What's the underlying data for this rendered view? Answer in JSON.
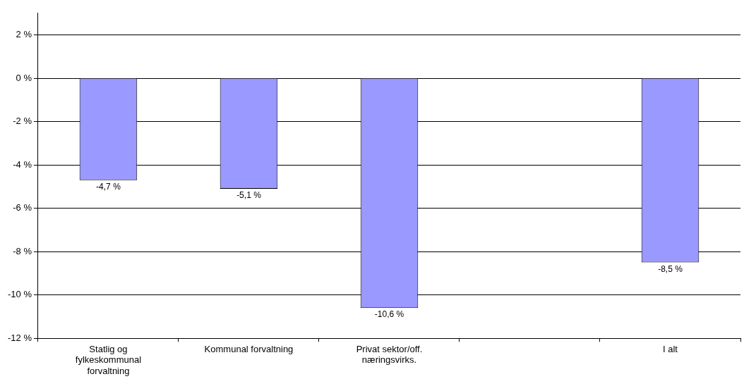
{
  "chart_data": {
    "type": "bar",
    "categories": [
      "Statlig og fylkeskommunal forvaltning",
      "Kommunal forvaltning",
      "Privat sektor/off. næringsvirks.",
      null,
      "I alt"
    ],
    "values": [
      -4.7,
      -5.1,
      -10.6,
      null,
      -8.5
    ],
    "value_labels": [
      "-4,7 %",
      "-5,1 %",
      "-10,6 %",
      null,
      "-8,5 %"
    ],
    "color": "#9999ff",
    "ylim": [
      -12,
      3
    ],
    "yticks": [
      {
        "value": -12,
        "label": "-12 %"
      },
      {
        "value": -10,
        "label": "-10 %"
      },
      {
        "value": -8,
        "label": "-8 %"
      },
      {
        "value": -6,
        "label": "-6 %"
      },
      {
        "value": -4,
        "label": "-4 %"
      },
      {
        "value": -2,
        "label": "-2 %"
      },
      {
        "value": 0,
        "label": "0 %"
      },
      {
        "value": 2,
        "label": "2 %"
      }
    ],
    "grid": "y",
    "legend": false
  }
}
